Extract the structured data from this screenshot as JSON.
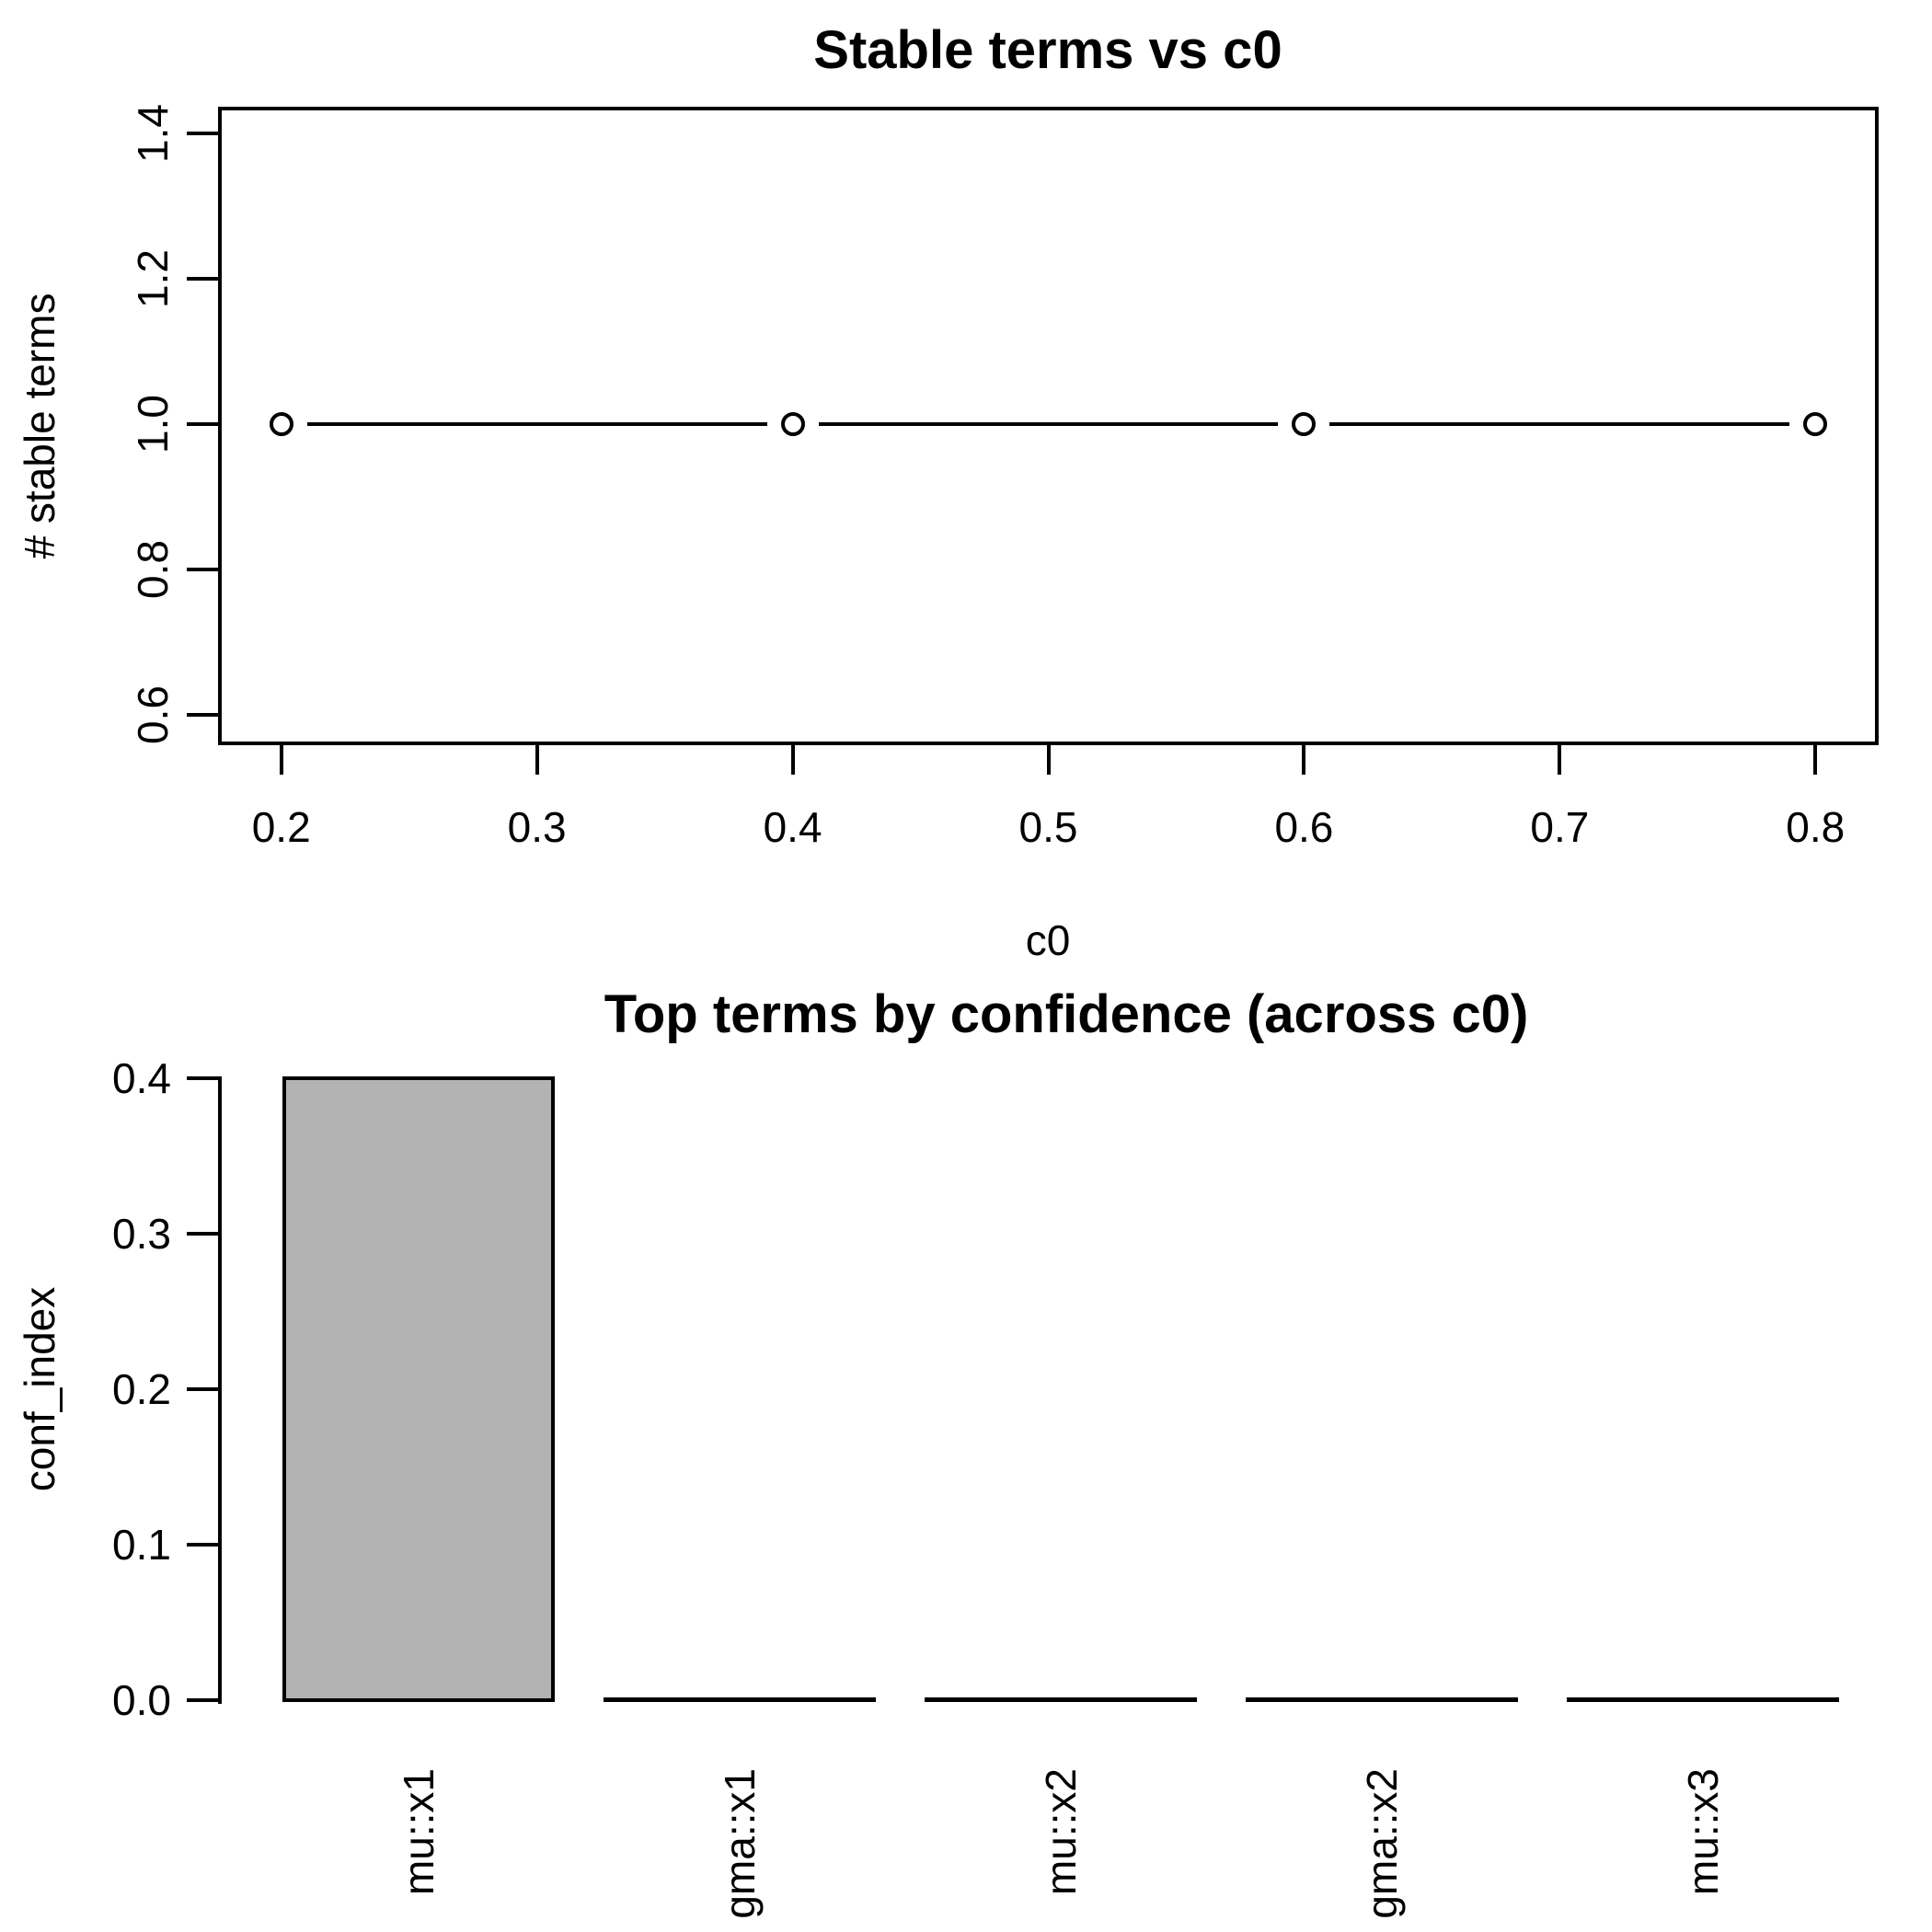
{
  "figure": {
    "background": "#ffffff",
    "foreground": "#000000"
  },
  "chart_data": [
    {
      "type": "line",
      "title": "Stable terms vs c0",
      "xlabel": "c0",
      "ylabel": "# stable terms",
      "x": [
        0.2,
        0.4,
        0.6,
        0.8
      ],
      "y": [
        1,
        1,
        1,
        1
      ],
      "marker": "open-circle",
      "line_style": "segments-with-point-gaps",
      "xlim": [
        0.176,
        0.824
      ],
      "ylim": [
        0.561,
        1.434
      ],
      "x_tick_values": [
        0.2,
        0.3,
        0.4,
        0.5,
        0.6,
        0.7,
        0.8
      ],
      "x_tick_labels": [
        "0.2",
        "0.3",
        "0.4",
        "0.5",
        "0.6",
        "0.7",
        "0.8"
      ],
      "y_tick_values": [
        0.6,
        0.8,
        1.0,
        1.2,
        1.4
      ],
      "y_tick_labels": [
        "0.6",
        "0.8",
        "1.0",
        "1.2",
        "1.4"
      ],
      "grid": false,
      "legend": null,
      "box": true
    },
    {
      "type": "bar",
      "title": "Top terms by confidence (across c0)",
      "xlabel": "",
      "ylabel": "conf_index",
      "categories": [
        "mu::x1",
        "gma::x1",
        "mu::x2",
        "gma::x2",
        "mu::x3"
      ],
      "values": [
        0.4,
        0,
        0,
        0,
        0
      ],
      "ylim": [
        0,
        0.4
      ],
      "y_tick_values": [
        0.0,
        0.1,
        0.2,
        0.3,
        0.4
      ],
      "y_tick_labels": [
        "0.0",
        "0.1",
        "0.2",
        "0.3",
        "0.4"
      ],
      "bar_fill": "#b3b3b3",
      "bar_border": "#000000",
      "category_label_rotation": -90,
      "grid": false,
      "legend": null,
      "box": false
    }
  ]
}
